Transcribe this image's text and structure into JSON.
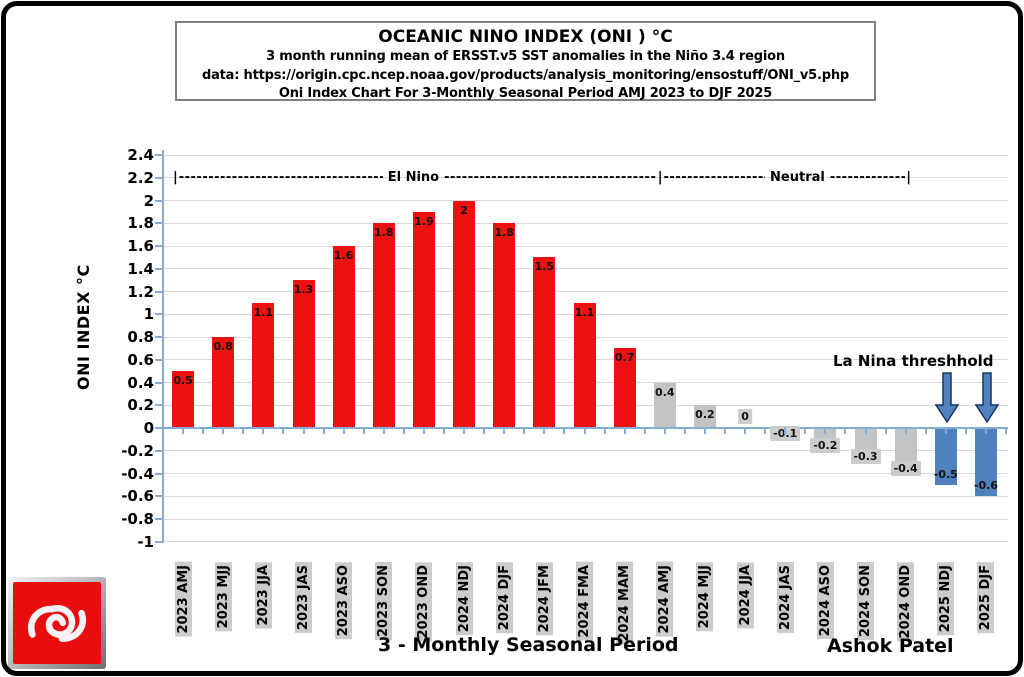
{
  "header": {
    "title": "OCEANIC NINO INDEX (ONI ) °C",
    "subtitle1": "3 month running mean of ERSST.v5 SST anomalies in the Niño 3.4 region",
    "subtitle2": "data: https://origin.cpc.ncep.noaa.gov/products/analysis_monitoring/ensostuff/ONI_v5.php",
    "subtitle3": "Oni Index Chart For 3-Monthly Seasonal Period AMJ 2023 to DJF 2025"
  },
  "phase_line": {
    "pipe": "|",
    "dashes": "----------------------------------------------------------------------------------------------------",
    "el_nino_label": "El Nino",
    "neutral_label": "Neutral"
  },
  "annotations": {
    "la_nina_threshold": "La Nina threshhold",
    "author": "Ashok Patel"
  },
  "logo": {
    "icon": "spiral-icon"
  },
  "chart_data": {
    "type": "bar",
    "title": "OCEANIC NINO INDEX (ONI ) °C",
    "xlabel": "3 - Monthly Seasonal Period",
    "ylabel": "ONI INDEX °C",
    "ylim": [
      -1,
      2.4
    ],
    "ytick_step": 0.2,
    "grid": true,
    "legend": "none",
    "categories": [
      "2023 AMJ",
      "2023 MJJ",
      "2023 JJA",
      "2023 JAS",
      "2023 ASO",
      "2023 SON",
      "2023 OND",
      "2024 NDJ",
      "2024 DJF",
      "2024 JFM",
      "2024 FMA",
      "2024 MAM",
      "2024 AMJ",
      "2024 MJJ",
      "2024 JJA",
      "2024 JAS",
      "2024 ASO",
      "2024 SON",
      "2024 OND",
      "2025 NDJ",
      "2025 DJF"
    ],
    "values": [
      0.5,
      0.8,
      1.1,
      1.3,
      1.6,
      1.8,
      1.9,
      2,
      1.8,
      1.5,
      1.1,
      0.7,
      0.4,
      0.2,
      0,
      -0.1,
      -0.2,
      -0.3,
      -0.4,
      -0.5,
      -0.6
    ],
    "phases": [
      "el_nino",
      "el_nino",
      "el_nino",
      "el_nino",
      "el_nino",
      "el_nino",
      "el_nino",
      "el_nino",
      "el_nino",
      "el_nino",
      "el_nino",
      "el_nino",
      "neutral",
      "neutral",
      "neutral",
      "neutral",
      "neutral",
      "neutral",
      "neutral",
      "la_nina",
      "la_nina"
    ],
    "colors": {
      "el_nino": "#ee1111",
      "neutral": "#c3c3c3",
      "la_nina": "#4f81bd",
      "axis": "#85add4",
      "gridline": "#d9d9d9",
      "label_bg": "#cccccc",
      "label_text": "#111111",
      "arrow_outline": "#17375e"
    }
  }
}
